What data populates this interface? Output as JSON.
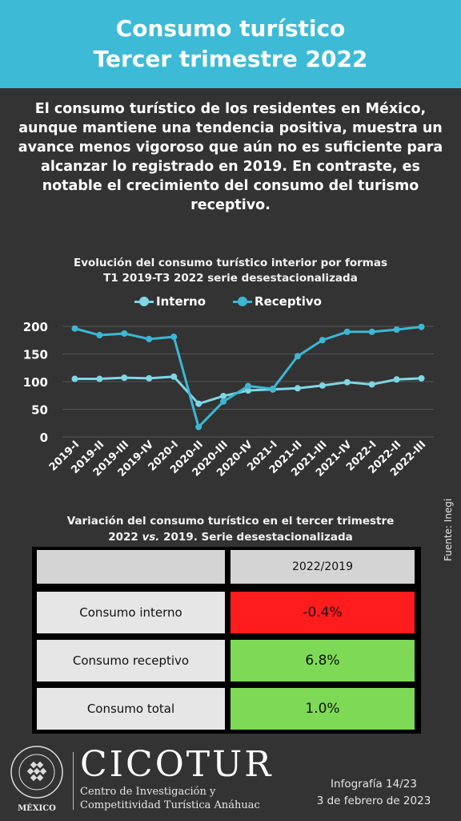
{
  "header": {
    "line1": "Consumo turístico",
    "line2": "Tercer trimestre 2022"
  },
  "intro": "El consumo turístico de los residentes en México, aunque mantiene una tendencia positiva, muestra un avance menos vigoroso que aún no es suficiente para alcanzar lo registrado en 2019. En contraste, es notable el crecimiento del consumo del turismo receptivo.",
  "chart_data": {
    "type": "line",
    "title_line1": "Evolución del consumo turístico interior por formas",
    "title_line2": "T1 2019-T3 2022 serie desestacionalizada",
    "categories": [
      "2019-I",
      "2019-II",
      "2019-III",
      "2019-IV",
      "2020-I",
      "2020-II",
      "2020-III",
      "2020-IV",
      "2021-I",
      "2021-II",
      "2021-III",
      "2021-IV",
      "2022-I",
      "2022-II",
      "2022-III"
    ],
    "series": [
      {
        "name": "Interno",
        "color": "#7fd6e6",
        "values": [
          105,
          105,
          107,
          106,
          109,
          60,
          74,
          84,
          86,
          88,
          93,
          99,
          95,
          104,
          106
        ]
      },
      {
        "name": "Receptivo",
        "color": "#3cb7d4",
        "values": [
          196,
          184,
          187,
          177,
          181,
          18,
          64,
          92,
          87,
          146,
          175,
          190,
          190,
          194,
          199
        ]
      }
    ],
    "yticks": [
      0,
      50,
      100,
      150,
      200
    ],
    "ylim": [
      0,
      205
    ],
    "grid": true,
    "legend": "top"
  },
  "table": {
    "title_line1": "Variación del consumo turístico en el tercer trimestre",
    "title_line2_a": "2022 ",
    "title_line2_vs": "vs.",
    "title_line2_b": " 2019. Serie desestacionalizada",
    "column_header": "2022/2019",
    "rows": [
      {
        "label": "Consumo interno",
        "value": "-0.4%",
        "color": "#ff1c1c"
      },
      {
        "label": "Consumo receptivo",
        "value": "6.8%",
        "color": "#7ed957"
      },
      {
        "label": "Consumo total",
        "value": "1.0%",
        "color": "#7ed957"
      }
    ]
  },
  "source": "Fuente: Inegi",
  "footer": {
    "seal_text": "UNIVERSIDAD ANÁHUAC · VINCE IN BONO MALUM",
    "seal_country": "MÉXICO",
    "brand": "CICOTUR",
    "sub1": "Centro de Investigación y",
    "sub2": "Competitividad Turística Anáhuac",
    "info1": "Infografía 14/23",
    "info2": "3 de febrero de 2023"
  }
}
